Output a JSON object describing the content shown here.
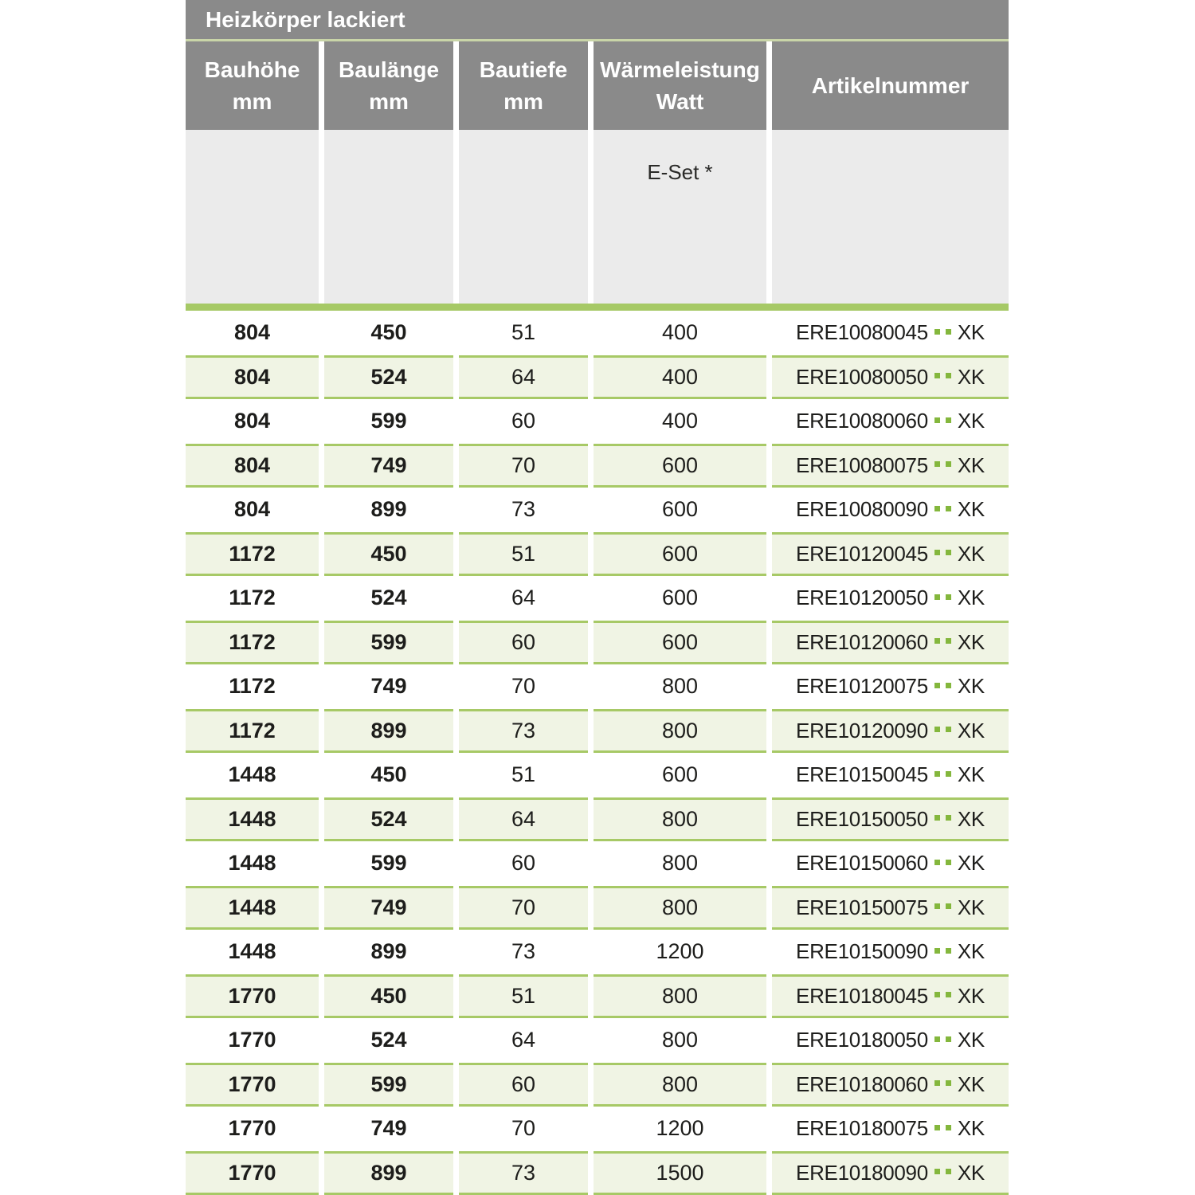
{
  "table": {
    "title": "Heizkörper lackiert",
    "columns": [
      {
        "line1": "Bauhöhe",
        "line2": "mm"
      },
      {
        "line1": "Baulänge",
        "line2": "mm"
      },
      {
        "line1": "Bautiefe",
        "line2": "mm"
      },
      {
        "line1": "Wärmeleistung",
        "line2": "Watt"
      },
      {
        "line1": "Artikelnummer",
        "line2": ""
      }
    ],
    "subheader": {
      "eset_label": "E-Set *"
    },
    "rows": [
      {
        "bauhoehe": "804",
        "baulaenge": "450",
        "bautiefe": "51",
        "watt": "400",
        "artikel": "ERE10080045",
        "dots": "..",
        "suffix": "XK"
      },
      {
        "bauhoehe": "804",
        "baulaenge": "524",
        "bautiefe": "64",
        "watt": "400",
        "artikel": "ERE10080050",
        "dots": "..",
        "suffix": "XK"
      },
      {
        "bauhoehe": "804",
        "baulaenge": "599",
        "bautiefe": "60",
        "watt": "400",
        "artikel": "ERE10080060",
        "dots": "..",
        "suffix": "XK"
      },
      {
        "bauhoehe": "804",
        "baulaenge": "749",
        "bautiefe": "70",
        "watt": "600",
        "artikel": "ERE10080075",
        "dots": "..",
        "suffix": "XK"
      },
      {
        "bauhoehe": "804",
        "baulaenge": "899",
        "bautiefe": "73",
        "watt": "600",
        "artikel": "ERE10080090",
        "dots": "..",
        "suffix": "XK"
      },
      {
        "bauhoehe": "1172",
        "baulaenge": "450",
        "bautiefe": "51",
        "watt": "600",
        "artikel": "ERE10120045",
        "dots": "..",
        "suffix": "XK"
      },
      {
        "bauhoehe": "1172",
        "baulaenge": "524",
        "bautiefe": "64",
        "watt": "600",
        "artikel": "ERE10120050",
        "dots": "..",
        "suffix": "XK"
      },
      {
        "bauhoehe": "1172",
        "baulaenge": "599",
        "bautiefe": "60",
        "watt": "600",
        "artikel": "ERE10120060",
        "dots": "..",
        "suffix": "XK"
      },
      {
        "bauhoehe": "1172",
        "baulaenge": "749",
        "bautiefe": "70",
        "watt": "800",
        "artikel": "ERE10120075",
        "dots": "..",
        "suffix": "XK"
      },
      {
        "bauhoehe": "1172",
        "baulaenge": "899",
        "bautiefe": "73",
        "watt": "800",
        "artikel": "ERE10120090",
        "dots": "..",
        "suffix": "XK"
      },
      {
        "bauhoehe": "1448",
        "baulaenge": "450",
        "bautiefe": "51",
        "watt": "600",
        "artikel": "ERE10150045",
        "dots": "..",
        "suffix": "XK"
      },
      {
        "bauhoehe": "1448",
        "baulaenge": "524",
        "bautiefe": "64",
        "watt": "800",
        "artikel": "ERE10150050",
        "dots": "..",
        "suffix": "XK"
      },
      {
        "bauhoehe": "1448",
        "baulaenge": "599",
        "bautiefe": "60",
        "watt": "800",
        "artikel": "ERE10150060",
        "dots": "..",
        "suffix": "XK"
      },
      {
        "bauhoehe": "1448",
        "baulaenge": "749",
        "bautiefe": "70",
        "watt": "800",
        "artikel": "ERE10150075",
        "dots": "..",
        "suffix": "XK"
      },
      {
        "bauhoehe": "1448",
        "baulaenge": "899",
        "bautiefe": "73",
        "watt": "1200",
        "artikel": "ERE10150090",
        "dots": "..",
        "suffix": "XK"
      },
      {
        "bauhoehe": "1770",
        "baulaenge": "450",
        "bautiefe": "51",
        "watt": "800",
        "artikel": "ERE10180045",
        "dots": "..",
        "suffix": "XK"
      },
      {
        "bauhoehe": "1770",
        "baulaenge": "524",
        "bautiefe": "64",
        "watt": "800",
        "artikel": "ERE10180050",
        "dots": "..",
        "suffix": "XK"
      },
      {
        "bauhoehe": "1770",
        "baulaenge": "599",
        "bautiefe": "60",
        "watt": "800",
        "artikel": "ERE10180060",
        "dots": "..",
        "suffix": "XK"
      },
      {
        "bauhoehe": "1770",
        "baulaenge": "749",
        "bautiefe": "70",
        "watt": "1200",
        "artikel": "ERE10180075",
        "dots": "..",
        "suffix": "XK"
      },
      {
        "bauhoehe": "1770",
        "baulaenge": "899",
        "bautiefe": "73",
        "watt": "1500",
        "artikel": "ERE10180090",
        "dots": "..",
        "suffix": "XK"
      }
    ],
    "colors": {
      "header_gray": "#8a8a8a",
      "subheader_gray": "#ebebeb",
      "accent_green": "#a6c966",
      "row_shade_green": "#f0f4e4",
      "dot_green": "#84b73d"
    }
  }
}
